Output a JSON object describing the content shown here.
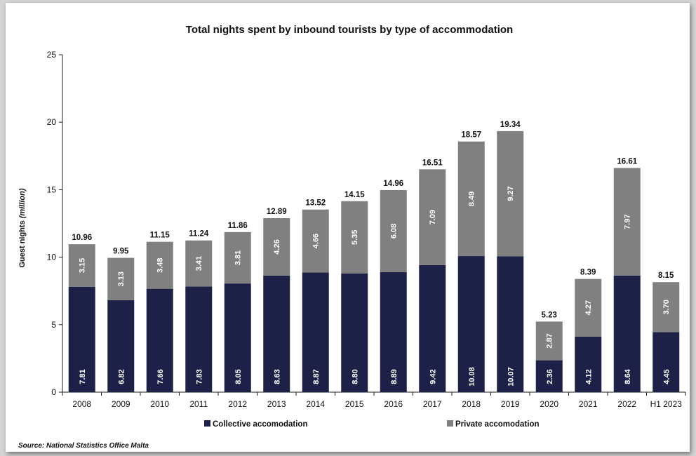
{
  "chart_data": {
    "type": "bar",
    "stacked": true,
    "title": "Total nights spent by inbound tourists by type of accommodation",
    "ylabel_main": "Guest nights ",
    "ylabel_unit": "(million)",
    "xlabel": "",
    "ylim": [
      0,
      25
    ],
    "yticks": [
      "0",
      "5",
      "10",
      "15",
      "20",
      "25"
    ],
    "categories": [
      "2008",
      "2009",
      "2010",
      "2011",
      "2012",
      "2013",
      "2014",
      "2015",
      "2016",
      "2017",
      "2018",
      "2019",
      "2020",
      "2021",
      "2022",
      "H1 2023"
    ],
    "series": [
      {
        "name": "Collective accomodation",
        "color": "#1d2147",
        "values": [
          7.81,
          6.82,
          7.66,
          7.83,
          8.05,
          8.63,
          8.87,
          8.8,
          8.89,
          9.42,
          10.08,
          10.07,
          2.36,
          4.12,
          8.64,
          4.45
        ],
        "labels": [
          "7.81",
          "6.82",
          "7.66",
          "7.83",
          "8.05",
          "8.63",
          "8.87",
          "8.80",
          "8.89",
          "9.42",
          "10.08",
          "10.07",
          "2.36",
          "4.12",
          "8.64",
          "4.45"
        ]
      },
      {
        "name": "Private accomodation",
        "color": "#808080",
        "values": [
          3.15,
          3.13,
          3.48,
          3.41,
          3.81,
          4.26,
          4.66,
          5.35,
          6.08,
          7.09,
          8.49,
          9.27,
          2.87,
          4.27,
          7.97,
          3.7
        ],
        "labels": [
          "3.15",
          "3.13",
          "3.48",
          "3.41",
          "3.81",
          "4.26",
          "4.66",
          "5.35",
          "6.08",
          "7.09",
          "8.49",
          "9.27",
          "2.87",
          "4.27",
          "7.97",
          "3.70"
        ]
      }
    ],
    "totals": [
      "10.96",
      "9.95",
      "11.15",
      "11.24",
      "11.86",
      "12.89",
      "13.52",
      "14.15",
      "14.96",
      "16.51",
      "18.57",
      "19.34",
      "5.23",
      "8.39",
      "16.61",
      "8.15"
    ],
    "grid": false,
    "legend_position": "bottom"
  },
  "source": "Source: National Statistics Office Malta"
}
